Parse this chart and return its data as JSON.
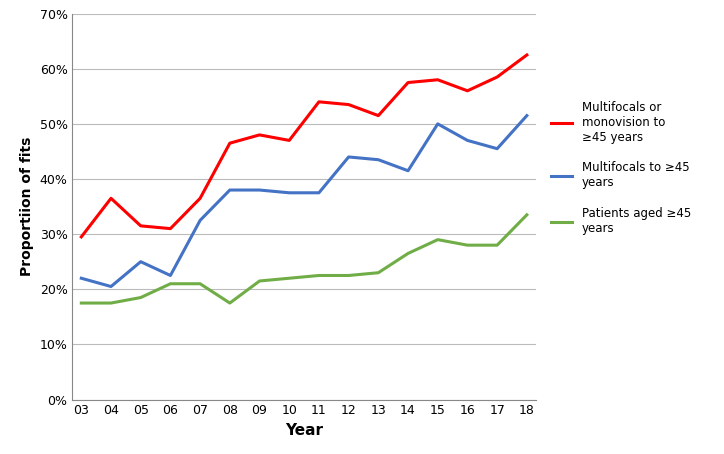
{
  "years": [
    "03",
    "04",
    "05",
    "06",
    "07",
    "08",
    "09",
    "10",
    "11",
    "12",
    "13",
    "14",
    "15",
    "16",
    "17",
    "18"
  ],
  "red_series": [
    29.5,
    36.5,
    31.5,
    31.0,
    36.5,
    46.5,
    48.0,
    47.0,
    54.0,
    53.5,
    51.5,
    57.5,
    58.0,
    56.0,
    58.5,
    62.5
  ],
  "blue_series": [
    22.0,
    20.5,
    25.0,
    22.5,
    32.5,
    38.0,
    38.0,
    37.5,
    37.5,
    44.0,
    43.5,
    41.5,
    50.0,
    47.0,
    45.5,
    51.5
  ],
  "green_series": [
    17.5,
    17.5,
    18.5,
    21.0,
    21.0,
    17.5,
    21.5,
    22.0,
    22.5,
    22.5,
    23.0,
    26.5,
    29.0,
    28.0,
    28.0,
    33.5
  ],
  "red_color": "#FF0000",
  "blue_color": "#4472C4",
  "green_color": "#70AD47",
  "red_label": "Multifocals or\nmonovision to\n≥45 years",
  "blue_label": "Multifocals to ≥45\nyears",
  "green_label": "Patients aged ≥45\nyears",
  "xlabel": "Year",
  "ylabel": "Proportiion of fits",
  "ylim_min": 0,
  "ylim_max": 70,
  "yticks": [
    0,
    10,
    20,
    30,
    40,
    50,
    60,
    70
  ],
  "line_width": 2.2,
  "background_color": "#FFFFFF",
  "grid_color": "#BBBBBB"
}
